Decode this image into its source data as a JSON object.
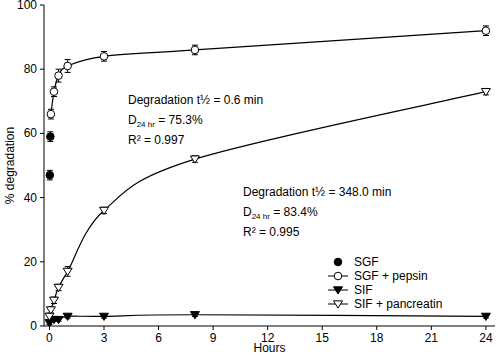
{
  "chart_data": {
    "type": "line",
    "x_label": "Hours",
    "y_label": "% degradation",
    "xlim": [
      -0.3,
      24.5
    ],
    "xticks": [
      0,
      3,
      6,
      9,
      12,
      15,
      18,
      21,
      24
    ],
    "ylim": [
      0,
      100
    ],
    "yticks": [
      0,
      20,
      40,
      60,
      80,
      100
    ],
    "grid": false,
    "legend": "lower right",
    "annotations": [
      "Degradation t½ = 0.6 min",
      "D24 hr = 75.3%",
      "R² = 0.997",
      "Degradation t½ = 348.0 min",
      "D24 hr = 83.4%",
      "R² = 0.995"
    ],
    "series": [
      {
        "name": "SGF",
        "color": "#000000",
        "marker": "circle-filled",
        "line_style": "none",
        "x": [
          0.02,
          0.05
        ],
        "values": [
          47,
          59
        ],
        "errors": [
          1.5,
          1.5
        ]
      },
      {
        "name": "SGF + pepsin",
        "color": "#000000",
        "marker": "circle-open",
        "line_style": "solid",
        "x": [
          0.08,
          0.25,
          0.5,
          1,
          3,
          8,
          24
        ],
        "values": [
          66,
          73,
          78,
          81,
          84,
          86,
          92
        ],
        "errors": [
          1.5,
          1.5,
          2,
          2,
          1.5,
          1.5,
          1.5
        ]
      },
      {
        "name": "SIF",
        "color": "#000000",
        "marker": "triangle-down-filled",
        "line_style": "solid",
        "x": [
          0,
          0.25,
          0.5,
          1,
          3,
          8,
          24
        ],
        "values": [
          1,
          2,
          2,
          3,
          3,
          3.5,
          3
        ],
        "errors": [
          0.5,
          0.5,
          0.5,
          0.5,
          0.5,
          0.5,
          0.5
        ]
      },
      {
        "name": "SIF + pancreatin",
        "color": "#000000",
        "marker": "triangle-down-open",
        "line_style": "solid",
        "x": [
          0,
          0.08,
          0.25,
          0.5,
          1,
          3,
          8,
          24
        ],
        "values": [
          3,
          5,
          8,
          12,
          17,
          36,
          52,
          73
        ],
        "errors": [
          1,
          1,
          1,
          1,
          1.5,
          1,
          1,
          1
        ]
      }
    ]
  }
}
